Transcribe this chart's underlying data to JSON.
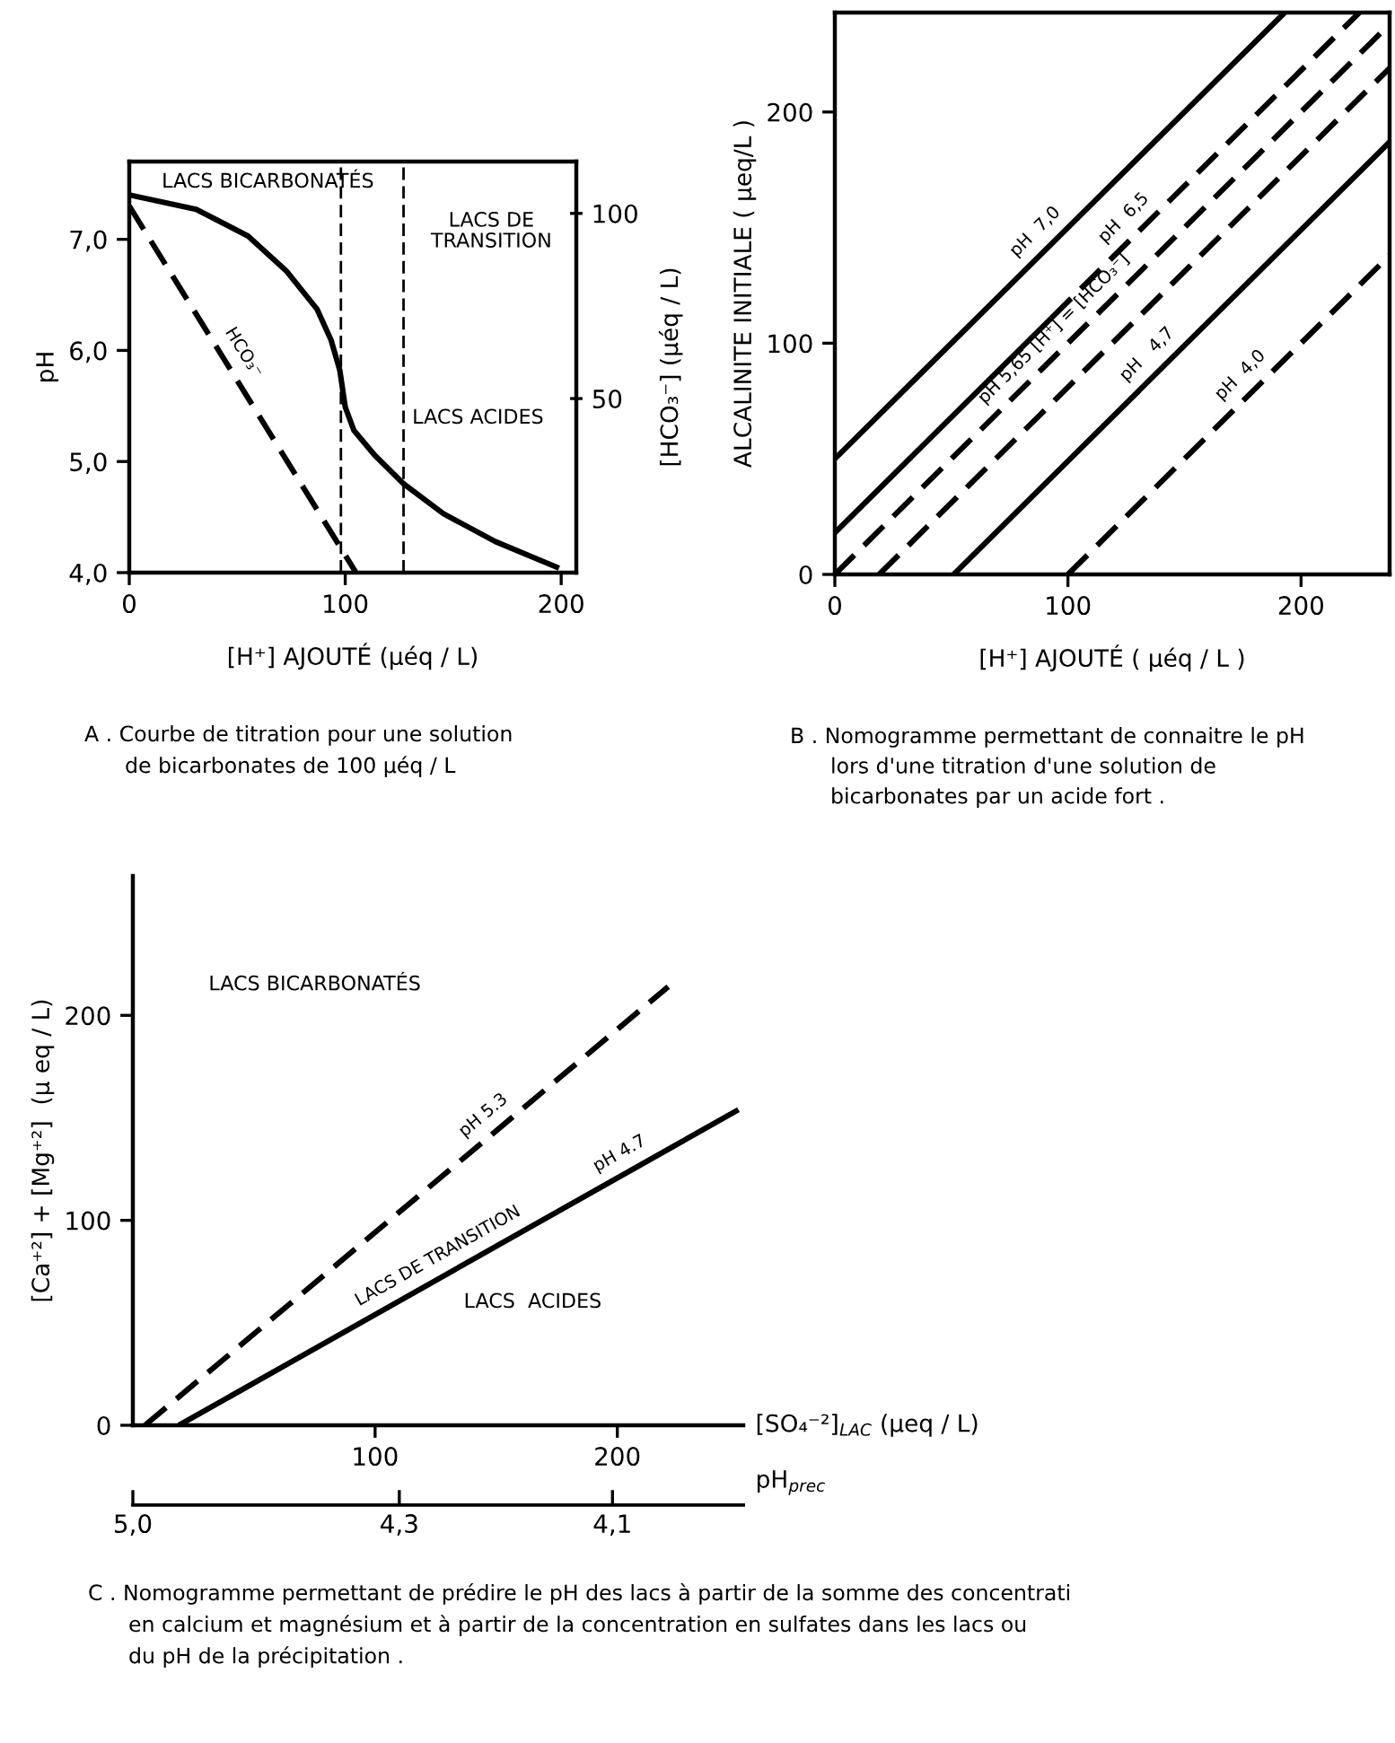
{
  "chart_data": [
    {
      "type": "line",
      "xlabel": "[H⁺] AJOUTÉ (µéq / L)",
      "ylabel": "pH",
      "y2label": "[HCO₃⁻] (µéq / L)",
      "xlim": [
        0,
        207
      ],
      "xticks": [
        0,
        100,
        200
      ],
      "ylim": [
        4,
        7.7
      ],
      "yticks": [
        {
          "value": 4,
          "label": "4,0"
        },
        {
          "value": 5,
          "label": "5,0"
        },
        {
          "value": 6,
          "label": "6,0"
        },
        {
          "value": 7,
          "label": "7,0"
        }
      ],
      "y2lim": [
        3,
        114
      ],
      "y2ticks": [
        50,
        100
      ],
      "series": [
        {
          "x": [
            0,
            31,
            55,
            73,
            87,
            93.5,
            97.5,
            100,
            104,
            113.5,
            127,
            145.5,
            169.5,
            199
          ],
          "values": [
            7.4,
            7.27,
            7.03,
            6.71,
            6.37,
            6.09,
            5.82,
            5.49,
            5.28,
            5.06,
            4.8,
            4.53,
            4.28,
            4.04
          ],
          "color": "#000000",
          "line_style": "solid"
        },
        {
          "x": [
            0,
            105
          ],
          "values": [
            102,
            3
          ],
          "color": "#000000",
          "line_style": "dashed",
          "axis": "y2"
        }
      ],
      "ref_lines": [
        {
          "axis": "x",
          "value": 98,
          "color": "#000000",
          "line_style": "dashed"
        },
        {
          "axis": "x",
          "value": 127,
          "color": "#000000",
          "line_style": "dashed"
        }
      ],
      "annotations": [
        "LACS BICARBONATÉS",
        "LACS DE\nTRANSITION",
        "LACS ACIDES",
        {
          "text": "HCO₃⁻",
          "x": 45,
          "y": 5.8857
        },
        "A . Courbe de titration pour une solution\n      de bicarbonates de 100 µéq / L"
      ]
    },
    {
      "type": "line",
      "xlabel": "[H⁺] AJOUTÉ ( µéq / L )",
      "ylabel": "ALCALINITE INITIALE ( µeq/L )",
      "xlim": [
        0,
        238
      ],
      "xticks": [
        0,
        100,
        200
      ],
      "ylim": [
        0,
        243
      ],
      "yticks": [
        0,
        100,
        200
      ],
      "series": [
        {
          "x": [
            0,
            193
          ],
          "values": [
            50,
            243
          ],
          "color": "#000000",
          "line_style": "solid"
        },
        {
          "x": [
            0,
            93
          ],
          "values": [
            18,
            111
          ],
          "color": "#000000",
          "line_style": "solid"
        },
        {
          "x": [
            93,
            225
          ],
          "values": [
            111,
            243
          ],
          "color": "#000000",
          "line_style": "dashed"
        },
        {
          "x": [
            0,
            238
          ],
          "values": [
            0,
            238
          ],
          "color": "#000000",
          "line_style": "dashed"
        },
        {
          "x": [
            19,
            238
          ],
          "values": [
            0,
            219
          ],
          "color": "#000000",
          "line_style": "dashed"
        },
        {
          "x": [
            51,
            238
          ],
          "values": [
            0,
            187
          ],
          "color": "#000000",
          "line_style": "solid"
        },
        {
          "x": [
            100,
            238
          ],
          "values": [
            0,
            138
          ],
          "color": "#000000",
          "line_style": "dashed"
        }
      ],
      "annotations": [
        {
          "text": "pH  7,0",
          "x": 92,
          "y": 142
        },
        {
          "text": "pH  6,5",
          "x": 130,
          "y": 148
        },
        {
          "text": "pH 5,65 [H⁺] = [HCO₃⁻]",
          "x": 100,
          "y": 100
        },
        {
          "text": "pH   4,7",
          "x": 140,
          "y": 89
        },
        {
          "text": "pH  4,0",
          "x": 180,
          "y": 80
        },
        "B . Nomogramme permettant de connaitre le pH\n      lors d'une titration d'une solution de\n      bicarbonates par un acide fort ."
      ]
    },
    {
      "type": "line",
      "xlabel": "[SO₄⁻²]$_{LAC}$ (µeq / L)",
      "ylabel": "[Ca⁺²] + [Mg⁺²]  (µ eq / L)",
      "xlim": [
        0,
        252
      ],
      "xticks": [
        100,
        200
      ],
      "ylim": [
        0,
        268
      ],
      "yticks": [
        0,
        100,
        200
      ],
      "series": [
        {
          "x": [
            5,
            221
          ],
          "values": [
            0,
            214
          ],
          "color": "#000000",
          "line_style": "dashed"
        },
        {
          "x": [
            19,
            250
          ],
          "values": [
            0,
            154
          ],
          "color": "#000000",
          "line_style": "solid"
        }
      ],
      "annotations": [
        "LACS BICARBONATÉS",
        {
          "text": "pH 5.3",
          "x": 150,
          "y": 143.66
        },
        {
          "text": "LACS DE TRANSITION",
          "x": 130,
          "y": 74.0
        },
        {
          "text": "pH 4.7",
          "x": 205,
          "y": 124.0
        },
        "LACS  ACIDES",
        "5,0",
        "4,3",
        "4,1",
        "pH$_{prec}$",
        "C . Nomogramme permettant de prédire le pH des lacs à partir de la somme des concentrati\n      en calcium et magnésium et à partir de la concentration en sulfates dans les lacs ou\n      du pH de la précipitation ."
      ]
    }
  ]
}
